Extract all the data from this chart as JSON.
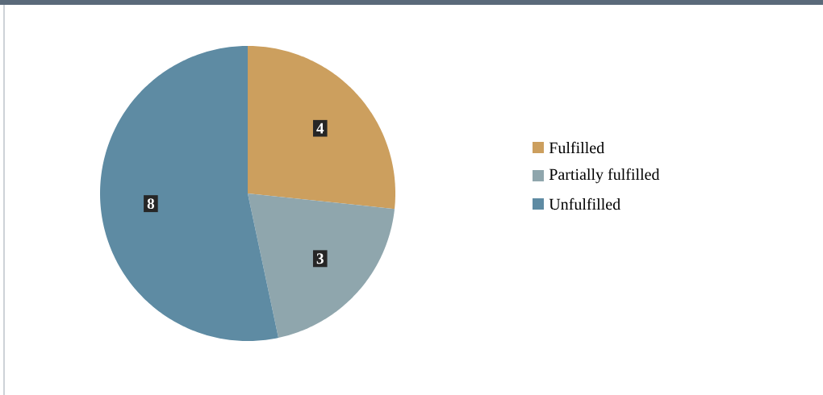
{
  "chart_data": {
    "type": "pie",
    "categories": [
      "Fulfilled",
      "Partially fulfilled",
      "Unfulfilled"
    ],
    "values": [
      4,
      3,
      8
    ],
    "colors": [
      "#cc9f5e",
      "#8fa6ad",
      "#5e8ba3"
    ],
    "data_labels": true,
    "legend": "right"
  }
}
